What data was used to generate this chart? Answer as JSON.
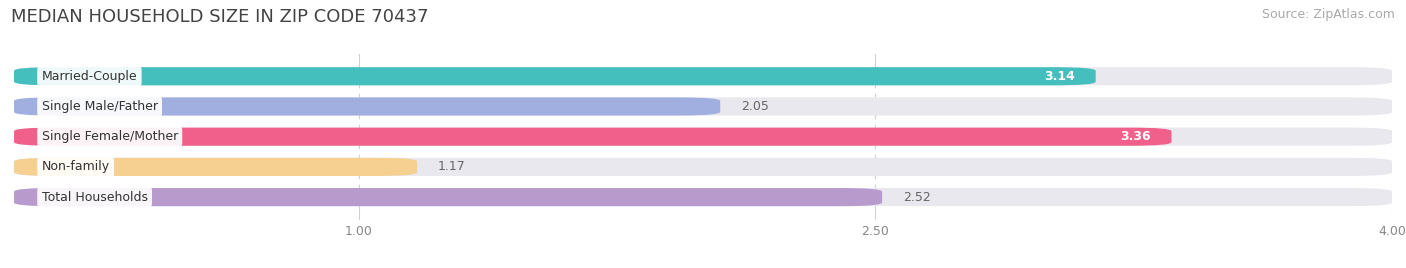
{
  "title": "MEDIAN HOUSEHOLD SIZE IN ZIP CODE 70437",
  "source": "Source: ZipAtlas.com",
  "categories": [
    "Married-Couple",
    "Single Male/Father",
    "Single Female/Mother",
    "Non-family",
    "Total Households"
  ],
  "values": [
    3.14,
    2.05,
    3.36,
    1.17,
    2.52
  ],
  "bar_colors": [
    "#45bfbe",
    "#a0aee0",
    "#f0608a",
    "#f5d090",
    "#b89acc"
  ],
  "value_inside": [
    true,
    false,
    true,
    false,
    false
  ],
  "xlim_left": 0.0,
  "xlim_right": 4.0,
  "xticks": [
    1.0,
    2.5,
    4.0
  ],
  "xtick_labels": [
    "1.00",
    "2.50",
    "4.00"
  ],
  "title_fontsize": 13,
  "source_fontsize": 9,
  "label_fontsize": 9,
  "value_fontsize": 9,
  "background_color": "#f2f2f4",
  "bar_bg_color": "#e8e8ee",
  "bar_height": 0.6,
  "bar_gap": 0.4
}
